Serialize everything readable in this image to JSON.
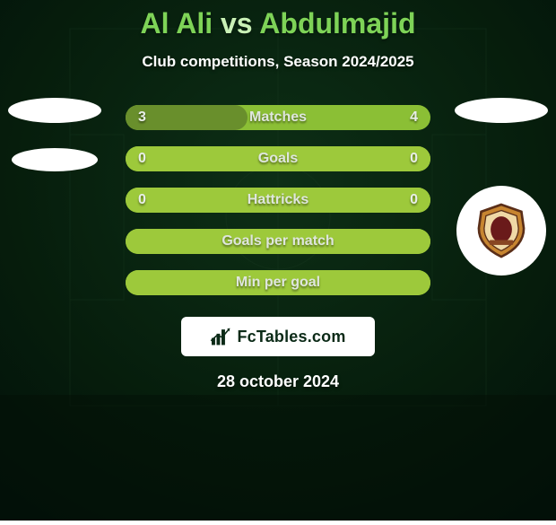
{
  "title_parts": {
    "left": "Al Ali",
    "vs": "vs",
    "right": "Abdulmajid",
    "left_color": "#7ed357",
    "vs_color": "#c9f0b6",
    "right_color": "#7ed357"
  },
  "subtitle": "Club competitions, Season 2024/2025",
  "background": {
    "color": "#041a0b",
    "gradient_from": "#0a2a12",
    "gradient_to": "#021005"
  },
  "row_base_color": "#6fa02e",
  "row_alt_color": "#9dc93b",
  "text_shadow_color": "rgba(0,0,0,0.45)",
  "rows": [
    {
      "label": "Matches",
      "left": "3",
      "right": "4",
      "left_fill_pct": 40,
      "base_fill": "#8bbf35",
      "left_fill": "#698f2c"
    },
    {
      "label": "Goals",
      "left": "0",
      "right": "0",
      "left_fill_pct": 100,
      "base_fill": "#8bbf35",
      "left_fill": "#9dc93b"
    },
    {
      "label": "Hattricks",
      "left": "0",
      "right": "0",
      "left_fill_pct": 100,
      "base_fill": "#8bbf35",
      "left_fill": "#9dc93b"
    },
    {
      "label": "Goals per match",
      "left": "",
      "right": "",
      "left_fill_pct": 100,
      "base_fill": "#8bbf35",
      "left_fill": "#9dc93b"
    },
    {
      "label": "Min per goal",
      "left": "",
      "right": "",
      "left_fill_pct": 100,
      "base_fill": "#8bbf35",
      "left_fill": "#9dc93b"
    }
  ],
  "watermark_text": "FcTables.com",
  "date": "28 october 2024",
  "club_right": {
    "shield_fill": "#c78530",
    "shield_stroke": "#5a2e18",
    "inner_fill": "#6a1a1a"
  }
}
